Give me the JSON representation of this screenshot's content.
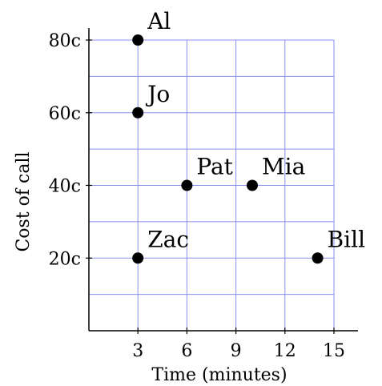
{
  "chart_data": {
    "type": "scatter",
    "title": "",
    "xlabel": "Time (minutes)",
    "ylabel": "Cost of call",
    "xlim": [
      0,
      15
    ],
    "ylim": [
      0,
      80
    ],
    "x_ticks": [
      {
        "value": 3,
        "label": "3"
      },
      {
        "value": 6,
        "label": "6"
      },
      {
        "value": 9,
        "label": "9"
      },
      {
        "value": 12,
        "label": "12"
      },
      {
        "value": 15,
        "label": "15"
      }
    ],
    "y_ticks": [
      {
        "value": 20,
        "label": "20c"
      },
      {
        "value": 40,
        "label": "40c"
      },
      {
        "value": 60,
        "label": "60c"
      },
      {
        "value": 80,
        "label": "80c"
      }
    ],
    "grid": true,
    "grid_color": "#8a8ff0",
    "point_color": "#000000",
    "points": [
      {
        "name": "Al",
        "x": 3,
        "y": 80
      },
      {
        "name": "Jo",
        "x": 3,
        "y": 60
      },
      {
        "name": "Pat",
        "x": 6,
        "y": 40
      },
      {
        "name": "Mia",
        "x": 10,
        "y": 40
      },
      {
        "name": "Zac",
        "x": 3,
        "y": 20
      },
      {
        "name": "Bill",
        "x": 14,
        "y": 20
      }
    ]
  }
}
